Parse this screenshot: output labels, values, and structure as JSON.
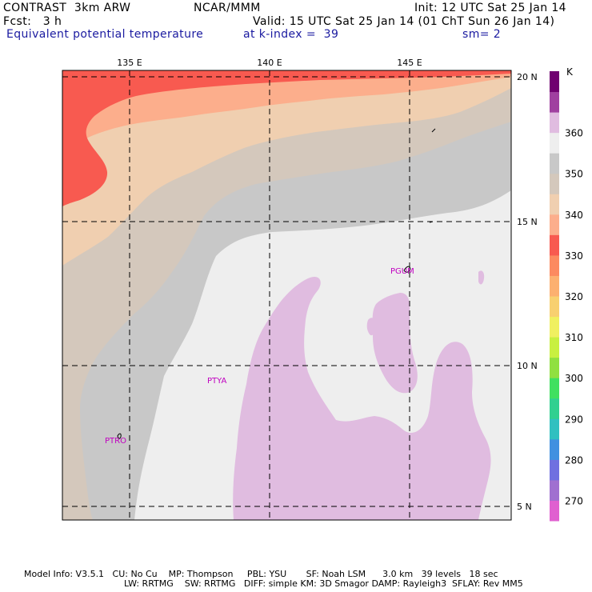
{
  "header": {
    "model": "CONTRAST  3km ARW",
    "org": "NCAR/MMM",
    "init": "Init: 12 UTC Sat 25 Jan 14",
    "fcst": "Fcst:   3 h",
    "valid": "Valid: 15 UTC Sat 25 Jan 14 (01 ChT Sun 26 Jan 14)",
    "field": "Equivalent potential temperature",
    "level": "at k-index =  39",
    "smooth": "sm= 2"
  },
  "map": {
    "lon_labels": [
      "135 E",
      "140 E",
      "145 E"
    ],
    "lat_labels": [
      "20 N",
      "15 N",
      "10 N",
      "5 N"
    ],
    "stations": [
      "PGUM",
      "PTYA",
      "PTRO"
    ]
  },
  "colorbar": {
    "unit": "K",
    "ticks": [
      "270",
      "280",
      "290",
      "300",
      "310",
      "320",
      "330",
      "340",
      "350",
      "360"
    ],
    "colors": [
      "#e060d0",
      "#a070d0",
      "#7070e0",
      "#4090e0",
      "#30c0c0",
      "#30d090",
      "#40e060",
      "#90e040",
      "#c8f040",
      "#f0f060",
      "#f8d070",
      "#fcb070",
      "#fc8a60",
      "#f85a50",
      "#fcae8c",
      "#f0cfb0",
      "#d4c8bc",
      "#c8c8c8",
      "#eeeeee",
      "#e0bce0",
      "#a040a0",
      "#700070"
    ]
  },
  "footer": {
    "line1": "Model Info: V3.5.1   CU: No Cu    MP: Thompson     PBL: YSU       SF: Noah LSM      3.0 km   39 levels   18 sec",
    "line2": "LW: RRTMG    SW: RRTMG   DIFF: simple KM: 3D Smagor DAMP: Rayleigh3  SFLAY: Rev MM5"
  }
}
